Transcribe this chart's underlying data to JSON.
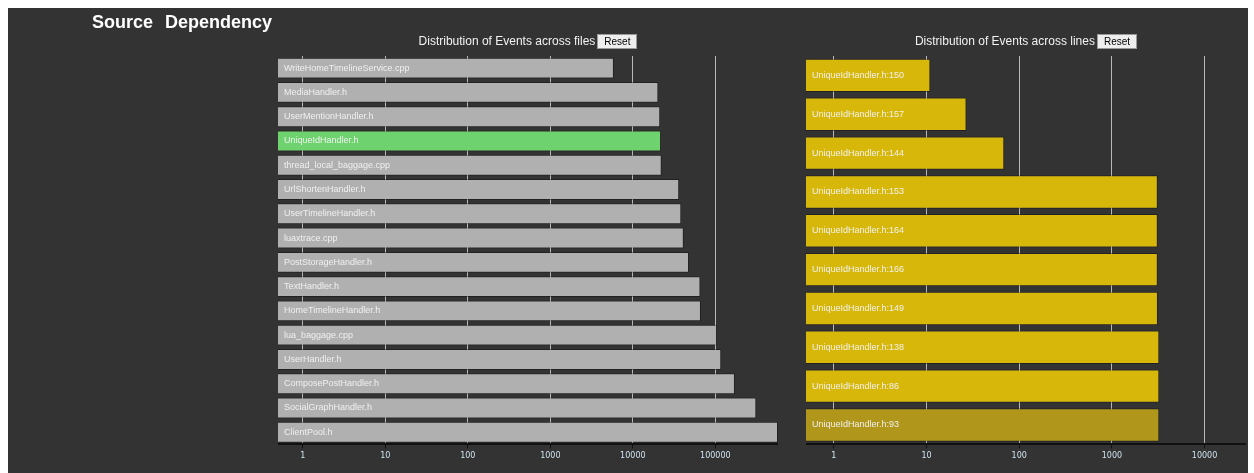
{
  "chart_data": [
    {
      "type": "other",
      "annotations": [
        "Source",
        "Dependency"
      ]
    },
    {
      "type": "bar",
      "orientation": "horizontal",
      "title": "Distribution of Events across files",
      "annotations": [
        "Reset"
      ],
      "log": "x",
      "grid": "x",
      "legend": false,
      "categories": [
        "WriteHomeTimelineService.cpp",
        "MediaHandler.h",
        "UserMentionHandler.h",
        "UniqueIdHandler.h",
        "thread_local_baggage.cpp",
        "UrlShortenHandler.h",
        "UserTimelineHandler.h",
        "luaxtrace.cpp",
        "PostStorageHandler.h",
        "TextHandler.h",
        "HomeTimelineHandler.h",
        "lua_baggage.cpp",
        "UserHandler.h",
        "ComposePostHandler.h",
        "SocialGraphHandler.h",
        "ClientPool.h"
      ],
      "values": [
        5900,
        20400,
        21500,
        22000,
        22400,
        36500,
        38700,
        41500,
        48000,
        66000,
        67000,
        105000,
        118000,
        173000,
        314000,
        575000
      ],
      "colors": [
        "#b0b0b0",
        "#b0b0b0",
        "#b0b0b0",
        "#6ed36e",
        "#b0b0b0",
        "#b0b0b0",
        "#b0b0b0",
        "#b0b0b0",
        "#b0b0b0",
        "#b0b0b0",
        "#b0b0b0",
        "#b0b0b0",
        "#b0b0b0",
        "#b0b0b0",
        "#b0b0b0",
        "#b0b0b0"
      ],
      "xlim": [
        0.5,
        575000
      ],
      "xticks": [
        1,
        10,
        100,
        1000,
        10000,
        100000
      ]
    },
    {
      "type": "bar",
      "orientation": "horizontal",
      "title": "Distribution of Events across lines",
      "annotations": [
        "Reset"
      ],
      "log": "x",
      "grid": "x",
      "legend": false,
      "categories": [
        "UniqueIdHandler.h:150",
        "UniqueIdHandler.h:157",
        "UniqueIdHandler.h:144",
        "UniqueIdHandler.h:153",
        "UniqueIdHandler.h:164",
        "UniqueIdHandler.h:166",
        "UniqueIdHandler.h:149",
        "UniqueIdHandler.h:138",
        "UniqueIdHandler.h:86",
        "UniqueIdHandler.h:93"
      ],
      "values": [
        11,
        27,
        69,
        3130,
        3130,
        3130,
        3140,
        3250,
        3250,
        3250
      ],
      "colors": [
        "#d7b80a",
        "#d7b80a",
        "#d7b80a",
        "#d7b80a",
        "#d7b80a",
        "#d7b80a",
        "#d7b80a",
        "#d7b80a",
        "#d7b80a",
        "#b0961a"
      ],
      "xlim": [
        0.5,
        28000
      ],
      "xticks": [
        1,
        10,
        100,
        1000,
        10000
      ]
    }
  ]
}
